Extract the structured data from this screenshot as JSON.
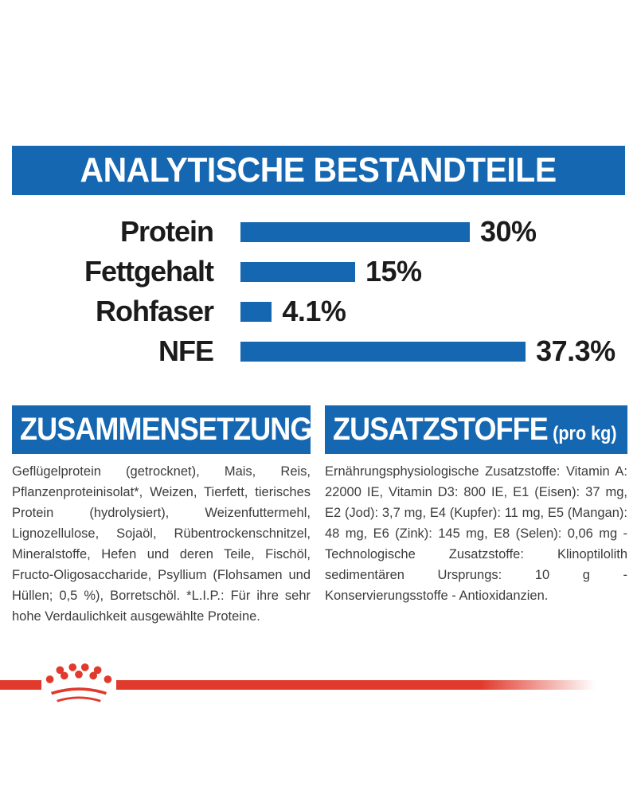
{
  "colors": {
    "blue": "#1467b0",
    "red": "#e13a2c",
    "body_text": "#3c3c3c",
    "chart_text": "#1b1b1b",
    "band_text": "#ffffff",
    "page_bg": "#ffffff"
  },
  "analytical": {
    "title": "ANALYTISCHE BESTANDTEILE"
  },
  "chart_data": {
    "type": "bar",
    "orientation": "horizontal",
    "title": "ANALYTISCHE BESTANDTEILE",
    "categories": [
      "Protein",
      "Fettgehalt",
      "Rohfaser",
      "NFE"
    ],
    "values": [
      30,
      15,
      4.1,
      37.3
    ],
    "value_labels": [
      "30%",
      "15%",
      "4.1%",
      "37.3%"
    ],
    "unit": "%",
    "xlim": [
      0,
      40
    ],
    "grid": false,
    "legend": false,
    "bar_color": "#1467b0"
  },
  "composition": {
    "title": "ZUSAMMENSETZUNG",
    "body": "Geflügelprotein (getrocknet), Mais, Reis, Pflanzenproteinisolat*, Weizen, Tierfett, tierisches Protein (hydrolysiert), Weizenfuttermehl, Lignozellulose, Sojaöl, Rübentrockenschnitzel, Mineralstoffe, Hefen und deren Teile, Fischöl, Fructo-Oligosaccharide, Psyllium (Flohsamen und Hüllen; 0,5 %), Borretschöl. *L.I.P.: Für ihre sehr hohe Verdaulichkeit ausgewählte Proteine."
  },
  "additives": {
    "title": "ZUSATZSTOFFE",
    "title_suffix": "(pro kg)",
    "body": "Ernährungsphysiologische Zusatzstoffe: Vitamin A: 22000 IE, Vitamin D3: 800 IE, E1 (Eisen): 37 mg, E2 (Jod): 3,7 mg, E4 (Kupfer): 11 mg, E5 (Mangan): 48 mg, E6 (Zink): 145 mg, E8 (Selen): 0,06 mg - Technologische Zusatzstoffe: Klinoptilolith sedimentären Ursprungs: 10 g - Konservierungsstoffe - Antioxidanzien."
  },
  "footer": {
    "logo": "royal-canin-crown"
  }
}
